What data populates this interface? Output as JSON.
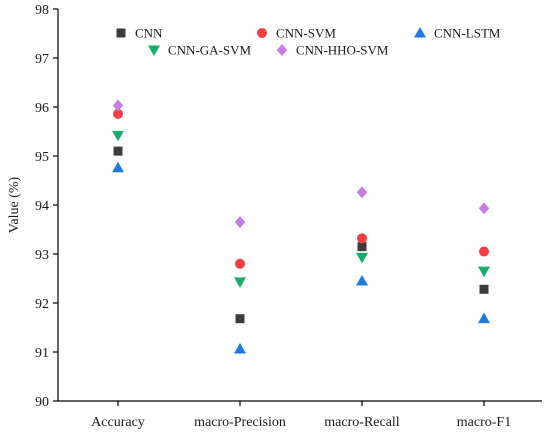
{
  "chart_data": {
    "type": "scatter",
    "title": "",
    "xlabel": "",
    "ylabel": "Value (%)",
    "categories": [
      "Accuracy",
      "macro-Precision",
      "macro-Recall",
      "macro-F1"
    ],
    "ylim": [
      90,
      98
    ],
    "yticks": [
      90,
      91,
      92,
      93,
      94,
      95,
      96,
      97,
      98
    ],
    "grid": false,
    "legend_position": "top",
    "series": [
      {
        "name": "CNN",
        "marker": "square",
        "color": "#3d3d3d",
        "values": [
          95.1,
          91.68,
          93.15,
          92.28
        ]
      },
      {
        "name": "CNN-SVM",
        "marker": "circle",
        "color": "#f23f3f",
        "values": [
          95.86,
          92.8,
          93.32,
          93.05
        ]
      },
      {
        "name": "CNN-LSTM",
        "marker": "triangle-up",
        "color": "#1f77e0",
        "values": [
          94.76,
          91.06,
          92.45,
          91.68
        ]
      },
      {
        "name": "CNN-GA-SVM",
        "marker": "triangle-down",
        "color": "#17ad6b",
        "values": [
          95.42,
          92.43,
          92.93,
          92.65
        ]
      },
      {
        "name": "CNN-HHO-SVM",
        "marker": "diamond",
        "color": "#c77ce6",
        "values": [
          96.03,
          93.65,
          94.26,
          93.93
        ]
      }
    ]
  }
}
